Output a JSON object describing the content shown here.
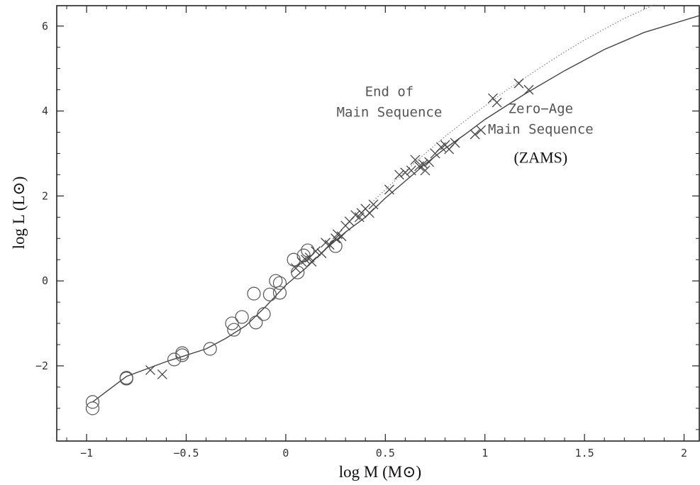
{
  "chart_data": {
    "type": "scatter",
    "title": "",
    "xlabel": "log M (M⊙)",
    "ylabel": "log L (L⊙)",
    "xlim": [
      -1.15,
      2.08
    ],
    "ylim": [
      -3.77,
      6.48
    ],
    "x_ticks": [
      -1,
      -0.5,
      0,
      0.5,
      1,
      1.5,
      2
    ],
    "x_tick_labels": [
      "−1",
      "−0.5",
      "0",
      "0.5",
      "1",
      "1.5",
      "2"
    ],
    "y_ticks": [
      -2,
      0,
      2,
      4,
      6
    ],
    "y_tick_labels": [
      "−2",
      "0",
      "2",
      "4",
      "6"
    ],
    "grid": false,
    "annotations": [
      {
        "lines": [
          "End of",
          "Main Sequence"
        ],
        "style": "mono",
        "anchor_data": [
          0.52,
          4.35
        ]
      },
      {
        "lines": [
          "Zero−Age",
          "Main Sequence"
        ],
        "style": "mono",
        "anchor_data": [
          1.28,
          3.95
        ]
      },
      {
        "lines": [
          "(ZAMS)"
        ],
        "style": "serif",
        "anchor_data": [
          1.28,
          2.78
        ]
      }
    ],
    "series": [
      {
        "name": "Zero-Age Main Sequence (ZAMS)",
        "kind": "line",
        "style": "solid",
        "x": [
          -0.97,
          -0.8,
          -0.6,
          -0.4,
          -0.3,
          -0.2,
          -0.1,
          0,
          0.1,
          0.2,
          0.3,
          0.4,
          0.5,
          0.6,
          0.7,
          0.8,
          0.9,
          1.0,
          1.2,
          1.4,
          1.6,
          1.8,
          2.08
        ],
        "y": [
          -2.85,
          -2.25,
          -1.9,
          -1.6,
          -1.35,
          -1.05,
          -0.6,
          -0.1,
          0.3,
          0.75,
          1.15,
          1.5,
          1.95,
          2.35,
          2.75,
          3.12,
          3.45,
          3.8,
          4.4,
          4.95,
          5.45,
          5.85,
          6.25
        ]
      },
      {
        "name": "End of Main Sequence",
        "kind": "line",
        "style": "dotted",
        "x": [
          0.4,
          0.5,
          0.6,
          0.7,
          0.8,
          0.9,
          1.0,
          1.1,
          1.2,
          1.3,
          1.4,
          1.5,
          1.6,
          1.7,
          1.85
        ],
        "y": [
          1.7,
          2.15,
          2.58,
          3.0,
          3.4,
          3.77,
          4.12,
          4.46,
          4.78,
          5.09,
          5.39,
          5.67,
          5.93,
          6.18,
          6.5
        ]
      },
      {
        "name": "circles",
        "kind": "markers",
        "marker": "circle",
        "x": [
          -0.97,
          -0.97,
          -0.8,
          -0.8,
          -0.56,
          -0.52,
          -0.52,
          -0.38,
          -0.27,
          -0.26,
          -0.22,
          -0.16,
          -0.15,
          -0.11,
          -0.08,
          -0.05,
          -0.03,
          -0.03,
          0.04,
          0.06,
          0.09,
          0.11,
          0.25
        ],
        "y": [
          -2.85,
          -3.0,
          -2.28,
          -2.3,
          -1.85,
          -1.7,
          -1.75,
          -1.6,
          -1.0,
          -1.15,
          -0.85,
          -0.3,
          -0.98,
          -0.78,
          -0.32,
          0.0,
          -0.05,
          -0.28,
          0.5,
          0.2,
          0.6,
          0.72,
          0.82
        ]
      },
      {
        "name": "crosses",
        "kind": "markers",
        "marker": "x",
        "x": [
          -0.68,
          -0.62,
          0.05,
          0.08,
          0.1,
          0.12,
          0.13,
          0.15,
          0.18,
          0.2,
          0.22,
          0.25,
          0.26,
          0.28,
          0.3,
          0.32,
          0.35,
          0.37,
          0.38,
          0.4,
          0.42,
          0.44,
          0.52,
          0.57,
          0.6,
          0.63,
          0.65,
          0.67,
          0.69,
          0.7,
          0.72,
          0.75,
          0.78,
          0.8,
          0.82,
          0.85,
          0.95,
          0.98,
          1.04,
          1.06,
          1.17,
          1.22
        ],
        "y": [
          -2.1,
          -2.2,
          0.3,
          0.45,
          0.5,
          0.55,
          0.45,
          0.7,
          0.65,
          0.9,
          0.85,
          1.0,
          1.1,
          1.05,
          1.3,
          1.4,
          1.55,
          1.5,
          1.6,
          1.7,
          1.6,
          1.8,
          2.15,
          2.5,
          2.55,
          2.6,
          2.85,
          2.7,
          2.75,
          2.6,
          2.8,
          3.0,
          3.15,
          3.2,
          3.1,
          3.25,
          3.45,
          3.55,
          4.3,
          4.2,
          4.65,
          4.5
        ]
      }
    ]
  }
}
